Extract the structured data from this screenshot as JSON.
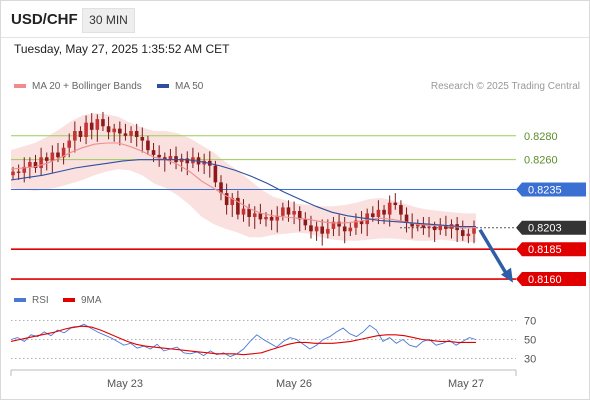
{
  "header": {
    "symbol": "USD/CHF",
    "timeframe": "30 MIN",
    "timestamp": "Tuesday, May 27, 2025 1:35:52 AM CET",
    "credit": "Research © 2025 Trading Central"
  },
  "legend": {
    "ma20_label": "MA 20 + Bollinger Bands",
    "ma50_label": "MA 50",
    "rsi_label": "RSI",
    "rsi_ma_label": "9MA"
  },
  "colors": {
    "ma20": "#f08c8c",
    "ma50": "#2d4f9e",
    "band": "#fbe0e0",
    "bull_candle": "#c83232",
    "bear_candle": "#8c1a1a",
    "resistance": "#9acd5a",
    "pivot": "#3b6fd1",
    "support": "#e00000",
    "current": "#333333",
    "arrow": "#2f5ea8",
    "rsi": "#4a78d6",
    "rsi_ma": "#e00000"
  },
  "chart_data": [
    {
      "type": "candlestick",
      "title": "USD/CHF",
      "xlabel": "",
      "ylabel": "",
      "x_ticks": [
        "May 23",
        "May 26",
        "May 27"
      ],
      "ylim": [
        0.8155,
        0.831
      ],
      "levels": [
        {
          "value": 0.828,
          "label": "0.8280",
          "kind": "resistance"
        },
        {
          "value": 0.826,
          "label": "0.8260",
          "kind": "resistance"
        },
        {
          "value": 0.8235,
          "label": "0.8235",
          "kind": "pivot"
        },
        {
          "value": 0.8203,
          "label": "0.8203",
          "kind": "current"
        },
        {
          "value": 0.8185,
          "label": "0.8185",
          "kind": "support"
        },
        {
          "value": 0.816,
          "label": "0.8160",
          "kind": "support"
        }
      ],
      "close_series": [
        0.825,
        0.8249,
        0.8254,
        0.8258,
        0.8253,
        0.8262,
        0.8259,
        0.8266,
        0.8262,
        0.827,
        0.8276,
        0.8284,
        0.8279,
        0.8291,
        0.8285,
        0.8294,
        0.8288,
        0.8283,
        0.8286,
        0.8282,
        0.828,
        0.8284,
        0.8279,
        0.8276,
        0.8268,
        0.8264,
        0.8262,
        0.826,
        0.8263,
        0.8258,
        0.8261,
        0.8257,
        0.8262,
        0.8256,
        0.8259,
        0.8255,
        0.8241,
        0.8232,
        0.8222,
        0.8228,
        0.8214,
        0.8219,
        0.8212,
        0.8215,
        0.821,
        0.8212,
        0.8209,
        0.8213,
        0.822,
        0.8214,
        0.8217,
        0.821,
        0.8205,
        0.82,
        0.8204,
        0.8198,
        0.8202,
        0.8208,
        0.8204,
        0.82,
        0.8203,
        0.8209,
        0.8206,
        0.8215,
        0.8212,
        0.8218,
        0.8214,
        0.8224,
        0.8222,
        0.8214,
        0.8207,
        0.8204,
        0.8206,
        0.8203,
        0.8204,
        0.8201,
        0.8205,
        0.8202,
        0.8206,
        0.8201,
        0.8196,
        0.8198,
        0.8203
      ],
      "ma20": [
        0.8252,
        0.8253,
        0.8254,
        0.8257,
        0.8261,
        0.8266,
        0.827,
        0.8273,
        0.8274,
        0.8274,
        0.8271,
        0.8267,
        0.8262,
        0.826,
        0.8256,
        0.825,
        0.8242,
        0.8236,
        0.823,
        0.8225,
        0.8219,
        0.8215,
        0.8213,
        0.8212,
        0.8211,
        0.821,
        0.8208,
        0.8207,
        0.8207,
        0.8208,
        0.821,
        0.8211,
        0.821,
        0.8208,
        0.8206,
        0.8205,
        0.8205,
        0.8204,
        0.8203,
        0.8203
      ],
      "ma50": [
        0.8243,
        0.8245,
        0.8247,
        0.825,
        0.8253,
        0.8255,
        0.8257,
        0.8259,
        0.826,
        0.826,
        0.826,
        0.826,
        0.8258,
        0.8255,
        0.8251,
        0.8246,
        0.824,
        0.8233,
        0.8227,
        0.8221,
        0.8216,
        0.8213,
        0.8211,
        0.8209,
        0.8208,
        0.8207,
        0.8206,
        0.8205,
        0.8204,
        0.8204
      ]
    },
    {
      "type": "line",
      "title": "RSI",
      "ylim": [
        20,
        80
      ],
      "y_ticks": [
        70,
        50,
        30
      ],
      "series": [
        {
          "name": "RSI",
          "values": [
            50,
            52,
            48,
            55,
            53,
            58,
            54,
            60,
            57,
            62,
            63,
            66,
            62,
            58,
            55,
            52,
            48,
            44,
            46,
            41,
            43,
            40,
            45,
            38,
            40,
            42,
            36,
            35,
            37,
            33,
            38,
            34,
            36,
            32,
            35,
            40,
            48,
            55,
            50,
            46,
            42,
            48,
            52,
            50,
            45,
            40,
            44,
            50,
            53,
            58,
            62,
            56,
            53,
            58,
            65,
            60,
            48,
            52,
            46,
            50,
            44,
            42,
            48,
            50,
            44,
            46,
            49,
            44,
            48,
            52,
            50
          ]
        },
        {
          "name": "9MA",
          "values": [
            48,
            50,
            52,
            54,
            56,
            58,
            61,
            63,
            64,
            63,
            60,
            56,
            52,
            48,
            45,
            43,
            42,
            41,
            40,
            39,
            38,
            37,
            36,
            35,
            35,
            35,
            34,
            35,
            36,
            39,
            42,
            45,
            47,
            47,
            46,
            46,
            46,
            47,
            48,
            50,
            52,
            54,
            55,
            55,
            54,
            52,
            50,
            49,
            48,
            48,
            47,
            47,
            47
          ]
        }
      ]
    }
  ]
}
